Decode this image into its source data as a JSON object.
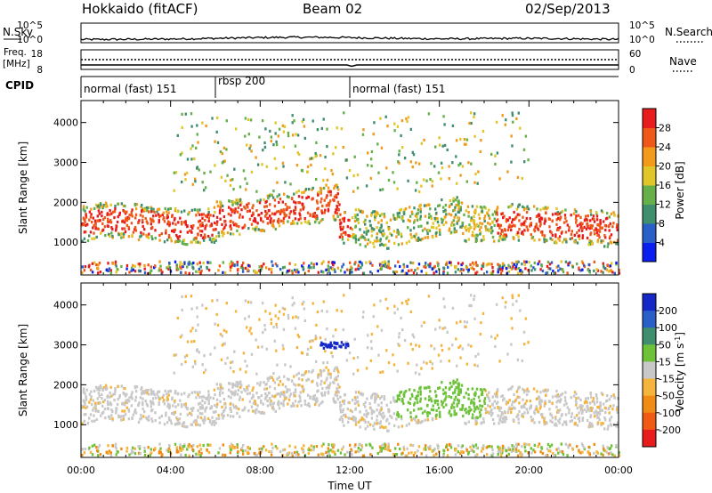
{
  "header": {
    "station": "Hokkaido (fitACF)",
    "beam": "Beam 02",
    "date": "02/Sep/2013"
  },
  "side_labels": {
    "nsky": "N.Sky",
    "nsearch": "N.Search",
    "freq_line1": "Freq.",
    "freq_line2": "[MHz]",
    "nave": "Nave",
    "cpid": "CPID"
  },
  "nsky_panel": {
    "left_ticks": [
      "10^5",
      "10^0"
    ],
    "right_ticks": [
      "10^5",
      "10^0"
    ]
  },
  "freq_panel": {
    "left_ticks": [
      "18",
      "8"
    ],
    "right_ticks": [
      "60",
      "0"
    ]
  },
  "cpid_segments": [
    {
      "label": "normal (fast) 151",
      "start_hour": 0
    },
    {
      "label": "rbsp 200",
      "start_hour": 6
    },
    {
      "label": "normal (fast) 151",
      "start_hour": 12
    }
  ],
  "chart_data": [
    {
      "type": "heatmap",
      "name": "power-panel",
      "ylabel": "Slant Range [km]",
      "xlim": [
        0,
        24
      ],
      "ylim": [
        180,
        4550
      ],
      "y_ticks": [
        1000,
        2000,
        3000,
        4000
      ],
      "colorbar": {
        "label": "Power [dB]",
        "ticks": [
          "4",
          "8",
          "12",
          "16",
          "20",
          "24",
          "28"
        ],
        "colors": [
          "#0a1ef0",
          "#2a5ec8",
          "#3f8f6e",
          "#66b04a",
          "#e0c628",
          "#f29a1a",
          "#f0581a",
          "#e81c1c"
        ]
      }
    },
    {
      "type": "heatmap",
      "name": "velocity-panel",
      "ylabel": "Slant Range [km]",
      "xlabel": "Time UT",
      "xlim": [
        0,
        24
      ],
      "ylim": [
        180,
        4550
      ],
      "y_ticks": [
        1000,
        2000,
        3000,
        4000
      ],
      "x_ticks": [
        "00:00",
        "04:00",
        "08:00",
        "12:00",
        "16:00",
        "20:00",
        "00:00"
      ],
      "colorbar": {
        "label": "Velocity [m s-1]",
        "ticks": [
          "200",
          "100",
          "50",
          "15",
          "-15",
          "-50",
          "-100",
          "-200"
        ],
        "colors": [
          "#1428c8",
          "#2a5ec8",
          "#3f8f6e",
          "#6ec23a",
          "#c8c8c8",
          "#f5b43c",
          "#f08c14",
          "#f05a14",
          "#e81c1c"
        ]
      }
    }
  ]
}
